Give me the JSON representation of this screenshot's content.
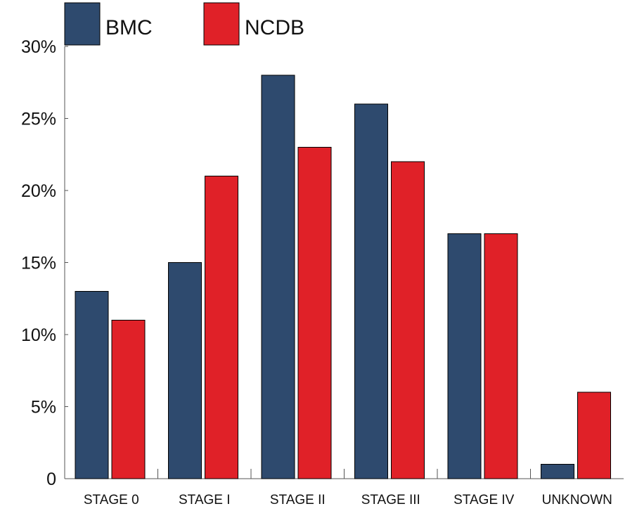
{
  "chart_data": {
    "type": "bar",
    "categories": [
      "STAGE 0",
      "STAGE I",
      "STAGE II",
      "STAGE III",
      "STAGE IV",
      "UNKNOWN"
    ],
    "series": [
      {
        "name": "BMC",
        "color": "#2e4a6e",
        "values": [
          13,
          15,
          28,
          26,
          17,
          1
        ]
      },
      {
        "name": "NCDB",
        "color": "#e02128",
        "values": [
          11,
          21,
          23,
          22,
          17,
          6
        ]
      }
    ],
    "ylim": [
      0,
      30
    ],
    "yticks": [
      0,
      5,
      10,
      15,
      20,
      25,
      30
    ],
    "ytick_labels": [
      "0",
      "5%",
      "10%",
      "15%",
      "20%",
      "25%",
      "30%"
    ],
    "xlabel": "",
    "ylabel": "",
    "legend": "top-left",
    "grid": false
  }
}
